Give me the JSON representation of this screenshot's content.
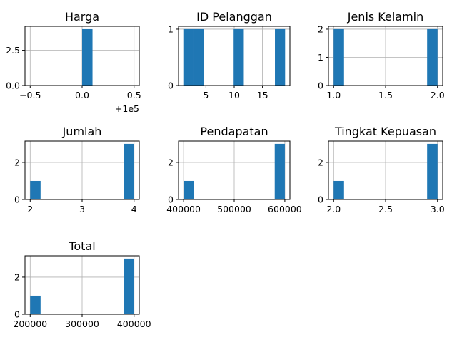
{
  "chart_data": [
    {
      "type": "bar",
      "title": "Harga",
      "xlim": [
        -0.55,
        0.55
      ],
      "ylim": [
        0,
        4.2
      ],
      "xticks": [
        -0.5,
        0.0,
        0.5
      ],
      "xtick_labels": [
        "−0.5",
        "0.0",
        "0.5"
      ],
      "yticks": [
        0.0,
        2.5
      ],
      "ytick_labels": [
        "0.0",
        "2.5"
      ],
      "offset_label": "+1e5",
      "grid": true,
      "color": "#1f77b4",
      "bins": [
        {
          "x0": 0.0,
          "x1": 0.1,
          "count": 4
        }
      ]
    },
    {
      "type": "bar",
      "title": "ID Pelanggan",
      "xlim": [
        0.15,
        19.85
      ],
      "ylim": [
        0,
        1.05
      ],
      "xticks": [
        5,
        10,
        15
      ],
      "xtick_labels": [
        "5",
        "10",
        "15"
      ],
      "yticks": [
        0,
        1
      ],
      "ytick_labels": [
        "0",
        "1"
      ],
      "grid": true,
      "color": "#1f77b4",
      "bins": [
        {
          "x0": 1.0,
          "x1": 2.8,
          "count": 1
        },
        {
          "x0": 2.8,
          "x1": 4.6,
          "count": 1
        },
        {
          "x0": 9.9,
          "x1": 11.7,
          "count": 1
        },
        {
          "x0": 17.2,
          "x1": 19.0,
          "count": 1
        }
      ]
    },
    {
      "type": "bar",
      "title": "Jenis Kelamin",
      "xlim": [
        0.95,
        2.05
      ],
      "ylim": [
        0,
        2.1
      ],
      "xticks": [
        1.0,
        1.5,
        2.0
      ],
      "xtick_labels": [
        "1.0",
        "1.5",
        "2.0"
      ],
      "yticks": [
        0,
        1,
        2
      ],
      "ytick_labels": [
        "0",
        "1",
        "2"
      ],
      "grid": true,
      "color": "#1f77b4",
      "bins": [
        {
          "x0": 1.0,
          "x1": 1.1,
          "count": 2
        },
        {
          "x0": 1.9,
          "x1": 2.0,
          "count": 2
        }
      ]
    },
    {
      "type": "bar",
      "title": "Jumlah",
      "xlim": [
        1.9,
        4.1
      ],
      "ylim": [
        0,
        3.15
      ],
      "xticks": [
        2,
        3,
        4
      ],
      "xtick_labels": [
        "2",
        "3",
        "4"
      ],
      "yticks": [
        0,
        2
      ],
      "ytick_labels": [
        "0",
        "2"
      ],
      "grid": true,
      "color": "#1f77b4",
      "bins": [
        {
          "x0": 2.0,
          "x1": 2.2,
          "count": 1
        },
        {
          "x0": 3.8,
          "x1": 4.0,
          "count": 3
        }
      ]
    },
    {
      "type": "bar",
      "title": "Pendapatan",
      "xlim": [
        390000,
        610000
      ],
      "ylim": [
        0,
        3.15
      ],
      "xticks": [
        400000,
        500000,
        600000
      ],
      "xtick_labels": [
        "400000",
        "500000",
        "600000"
      ],
      "yticks": [
        0,
        2
      ],
      "ytick_labels": [
        "0",
        "2"
      ],
      "grid": true,
      "color": "#1f77b4",
      "bins": [
        {
          "x0": 400000,
          "x1": 420000,
          "count": 1
        },
        {
          "x0": 580000,
          "x1": 600000,
          "count": 3
        }
      ]
    },
    {
      "type": "bar",
      "title": "Tingkat Kepuasan",
      "xlim": [
        1.95,
        3.05
      ],
      "ylim": [
        0,
        3.15
      ],
      "xticks": [
        2.0,
        2.5,
        3.0
      ],
      "xtick_labels": [
        "2.0",
        "2.5",
        "3.0"
      ],
      "yticks": [
        0,
        2
      ],
      "ytick_labels": [
        "0",
        "2"
      ],
      "grid": true,
      "color": "#1f77b4",
      "bins": [
        {
          "x0": 2.0,
          "x1": 2.1,
          "count": 1
        },
        {
          "x0": 2.9,
          "x1": 3.0,
          "count": 3
        }
      ]
    },
    {
      "type": "bar",
      "title": "Total",
      "xlim": [
        190000,
        410000
      ],
      "ylim": [
        0,
        3.15
      ],
      "xticks": [
        200000,
        300000,
        400000
      ],
      "xtick_labels": [
        "200000",
        "300000",
        "400000"
      ],
      "yticks": [
        0,
        2
      ],
      "ytick_labels": [
        "0",
        "2"
      ],
      "grid": true,
      "color": "#1f77b4",
      "bins": [
        {
          "x0": 200000,
          "x1": 220000,
          "count": 1
        },
        {
          "x0": 380000,
          "x1": 400000,
          "count": 3
        }
      ]
    }
  ]
}
